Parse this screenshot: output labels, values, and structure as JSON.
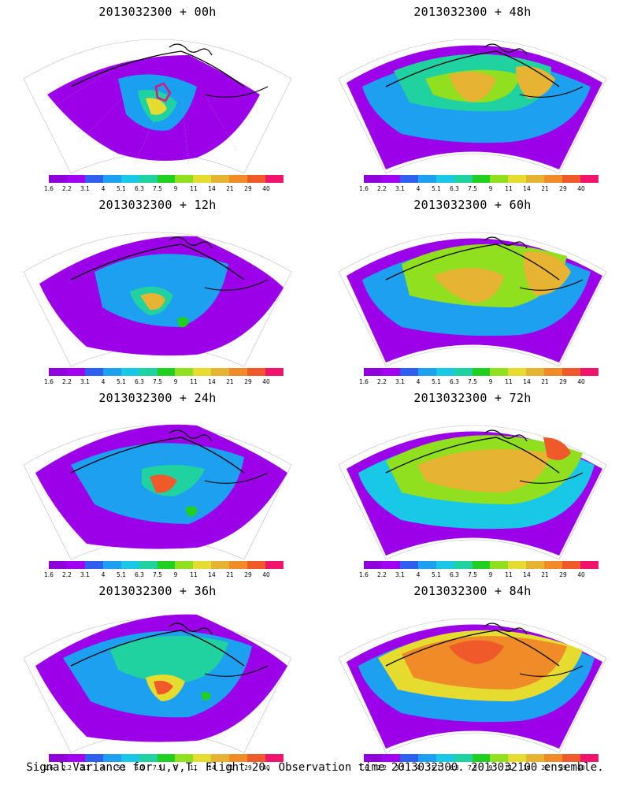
{
  "panels": [
    {
      "title": "2013032300 + 00h",
      "lead": "00h"
    },
    {
      "title": "2013032300 + 48h",
      "lead": "48h"
    },
    {
      "title": "2013032300 + 12h",
      "lead": "12h"
    },
    {
      "title": "2013032300 + 60h",
      "lead": "60h"
    },
    {
      "title": "2013032300 + 24h",
      "lead": "24h"
    },
    {
      "title": "2013032300 + 72h",
      "lead": "72h"
    },
    {
      "title": "2013032300 + 36h",
      "lead": "36h"
    },
    {
      "title": "2013032300 + 84h",
      "lead": "84h"
    }
  ],
  "colorbar": {
    "colors": [
      "#8f00dc",
      "#a100f2",
      "#2f5ff0",
      "#1ea0f0",
      "#18c8e6",
      "#20d2a0",
      "#20d020",
      "#90e020",
      "#e6dc30",
      "#e6b432",
      "#f08c28",
      "#f05a2a",
      "#f0146e"
    ],
    "labels": [
      "1.6",
      "2.2",
      "3.1",
      "4",
      "5.1",
      "6.3",
      "7.5",
      "9",
      "11",
      "14",
      "21",
      "29",
      "40"
    ]
  },
  "caption": "Signal Variance for u,v,T. Flight 20. Observation time 2013032300. 2013032100 ensemble."
}
